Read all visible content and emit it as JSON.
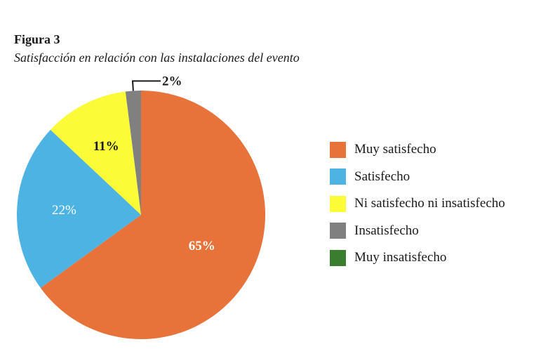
{
  "figure_label": "Figura 3",
  "caption": "Satisfacción en relación con las instalaciones del evento",
  "chart_data": {
    "type": "pie",
    "title": "",
    "start": "12 o'clock",
    "direction": "clockwise",
    "slices": [
      {
        "name": "Muy satisfecho",
        "value": 65,
        "label": "65%",
        "color": "#E8733A"
      },
      {
        "name": "Satisfecho",
        "value": 22,
        "label": "22%",
        "color": "#4DB3E3"
      },
      {
        "name": "Ni satisfecho ni insatisfecho",
        "value": 11,
        "label": "11%",
        "color": "#FBFB38"
      },
      {
        "name": "Insatisfecho",
        "value": 2,
        "label": "2%",
        "color": "#808080"
      },
      {
        "name": "Muy insatisfecho",
        "value": 0,
        "label": "",
        "color": "#3A7D2E"
      }
    ],
    "legend_position": "right"
  }
}
